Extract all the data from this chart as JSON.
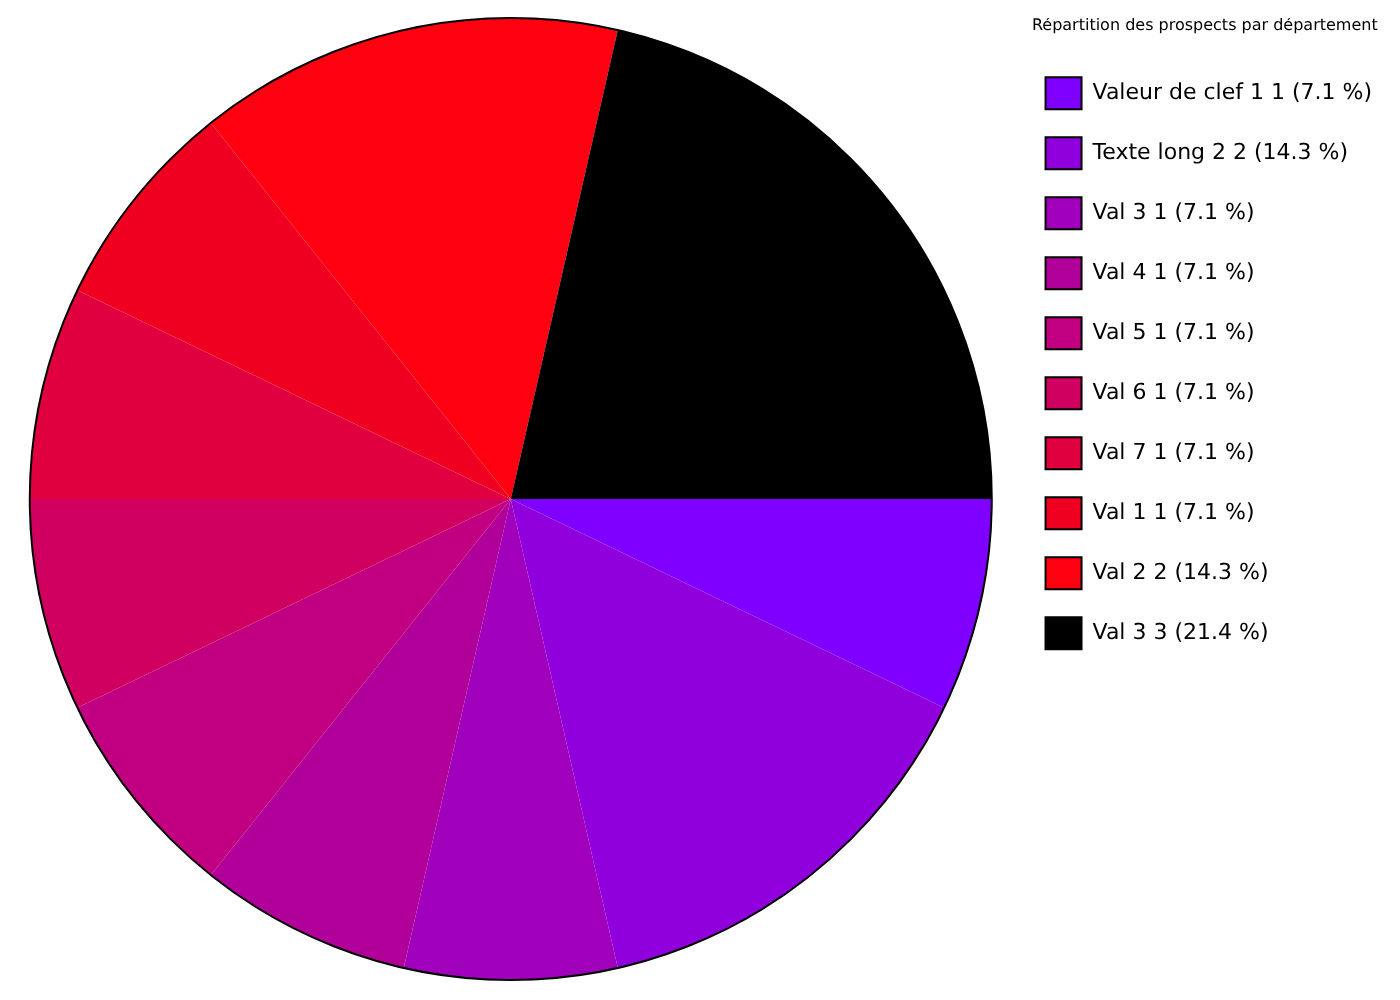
{
  "chart_data": {
    "type": "pie",
    "legend_title": "Répartition des prospects par département",
    "categories": [
      "Valeur de clef 1 1 (7.1 %)",
      "Texte long 2 2 (14.3 %)",
      "Val 3 1 (7.1 %)",
      "Val 4 1 (7.1 %)",
      "Val 5 1 (7.1 %)",
      "Val 6 1 (7.1 %)",
      "Val 7 1 (7.1 %)",
      "Val 1 1 (7.1 %)",
      "Val 2 2 (14.3 %)",
      "Val 3 3 (21.4 %)"
    ],
    "values": [
      1,
      2,
      1,
      1,
      1,
      1,
      1,
      1,
      2,
      3
    ],
    "colors": [
      "#8000ff",
      "#9000dc",
      "#a000bb",
      "#b00099",
      "#c00080",
      "#d00060",
      "#e00040",
      "#ef0020",
      "#ff0010",
      "#000000"
    ],
    "legend": "top right"
  }
}
